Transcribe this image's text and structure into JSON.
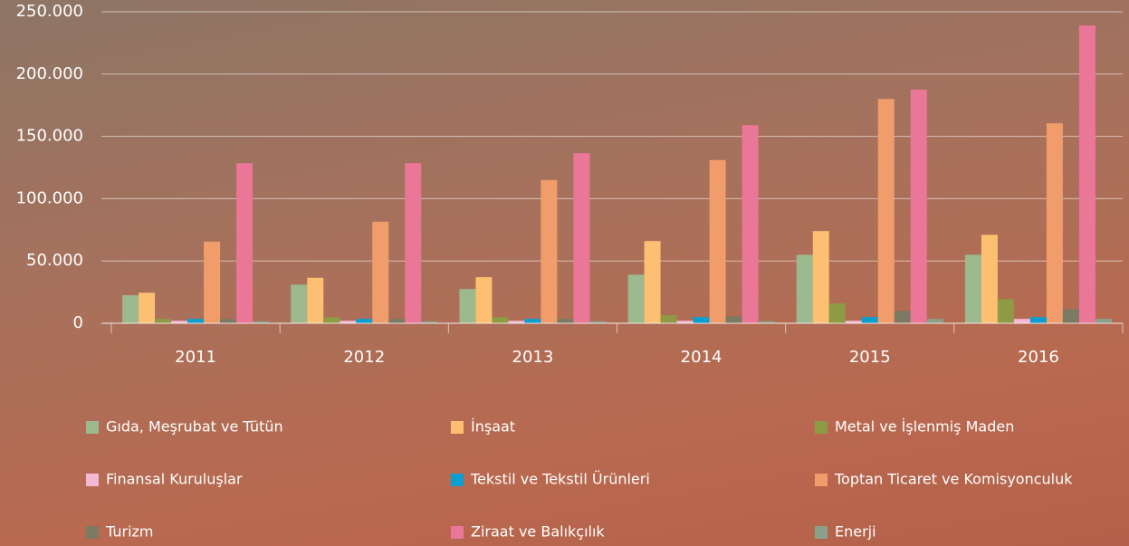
{
  "chart_data": {
    "type": "bar",
    "categories": [
      "2011",
      "2012",
      "2013",
      "2014",
      "2015",
      "2016"
    ],
    "series": [
      {
        "name": "Gıda, Meşrubat ve Tütün",
        "color": "#9db98e",
        "values": [
          22500,
          31000,
          27500,
          39000,
          55000,
          55000
        ]
      },
      {
        "name": "İnşaat",
        "color": "#fdbf72",
        "values": [
          24500,
          36500,
          37000,
          66000,
          74000,
          71000
        ]
      },
      {
        "name": "Metal ve İşlenmiş Maden",
        "color": "#8e9a44",
        "values": [
          3500,
          5000,
          5000,
          6500,
          16000,
          19500
        ]
      },
      {
        "name": "Finansal Kuruluşlar",
        "color": "#f4b8d4",
        "values": [
          2000,
          2000,
          2000,
          2000,
          2000,
          3500
        ]
      },
      {
        "name": "Tekstil ve Tekstil Ürünleri",
        "color": "#0b9ecf",
        "values": [
          3500,
          3500,
          3500,
          5000,
          5000,
          5000
        ]
      },
      {
        "name": "Toptan Ticaret ve Komisyonculuk",
        "color": "#f19c6b",
        "values": [
          65500,
          81500,
          115000,
          131000,
          180000,
          160500
        ]
      },
      {
        "name": "Turizm",
        "color": "#7c7a62",
        "values": [
          3500,
          3500,
          3500,
          5500,
          10000,
          11500
        ]
      },
      {
        "name": "Ziraat ve Balıkçılık",
        "color": "#ea7698",
        "values": [
          128500,
          128500,
          136500,
          159000,
          187500,
          239000
        ]
      },
      {
        "name": "Enerji",
        "color": "#8aa08a",
        "values": [
          1500,
          1500,
          1500,
          1500,
          3500,
          3500
        ]
      }
    ],
    "ylim": [
      0,
      250000
    ],
    "yticks": [
      0,
      {
        "value": 50000,
        "label": "50.000"
      },
      {
        "value": 100000,
        "label": "100.000"
      },
      {
        "value": 150000,
        "label": "150.000"
      },
      {
        "value": 200000,
        "label": "200.000"
      },
      {
        "value": 250000,
        "label": "250.000"
      }
    ],
    "grid": true
  }
}
